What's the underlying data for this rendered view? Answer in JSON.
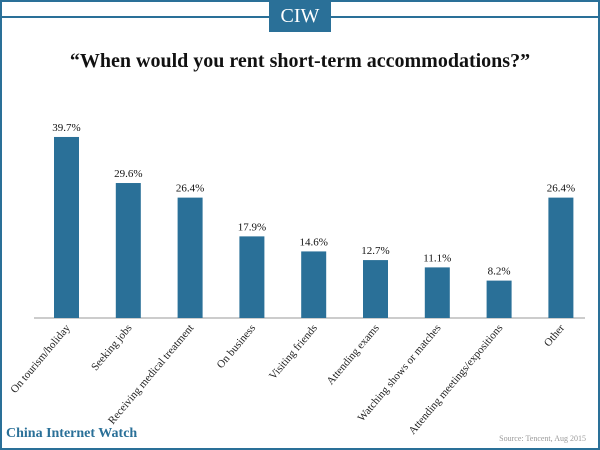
{
  "logo": "CIW",
  "footer": {
    "brand": "China Internet Watch",
    "source": "Source: Tencent, Aug 2015"
  },
  "colors": {
    "bar": "#2a7098",
    "frame": "#2a7098",
    "brand": "#2a7098"
  },
  "chart_data": {
    "type": "bar",
    "title": "“When would you rent short-term accommodations?”",
    "categories": [
      "On tourism/holiday",
      "Seeking jobs",
      "Receiving medical treatment",
      "On business",
      "Visiting friends",
      "Attending exams",
      "Watching shows or matches",
      "Attending meetings/expositions",
      "Other"
    ],
    "values": [
      39.7,
      29.6,
      26.4,
      17.9,
      14.6,
      12.7,
      11.1,
      8.2,
      26.4
    ],
    "value_labels": [
      "39.7%",
      "29.6%",
      "26.4%",
      "17.9%",
      "14.6%",
      "12.7%",
      "11.1%",
      "8.2%",
      "26.4%"
    ],
    "xlabel": "",
    "ylabel": "",
    "ylim": [
      0,
      45
    ],
    "grid": false,
    "legend": "none"
  }
}
